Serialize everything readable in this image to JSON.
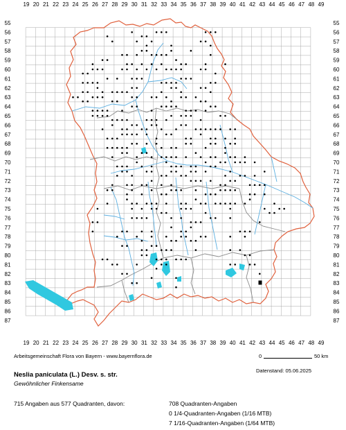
{
  "map": {
    "x_labels": [
      "19",
      "20",
      "21",
      "22",
      "23",
      "24",
      "25",
      "26",
      "27",
      "28",
      "29",
      "30",
      "31",
      "32",
      "33",
      "34",
      "35",
      "36",
      "37",
      "38",
      "39",
      "40",
      "41",
      "42",
      "43",
      "44",
      "45",
      "46",
      "47",
      "48",
      "49"
    ],
    "y_labels": [
      "55",
      "56",
      "57",
      "58",
      "59",
      "60",
      "61",
      "62",
      "63",
      "64",
      "65",
      "66",
      "67",
      "68",
      "69",
      "70",
      "71",
      "72",
      "73",
      "74",
      "75",
      "76",
      "77",
      "78",
      "79",
      "80",
      "81",
      "82",
      "83",
      "84",
      "85",
      "86",
      "87"
    ],
    "colors": {
      "grid": "#a8a8a8",
      "border_outer": "#e0603c",
      "border_inner": "#8a8a8a",
      "rivers": "#5aaee0",
      "lakes": "#30c8e0",
      "dots": "#000000"
    }
  },
  "footer": {
    "attribution": "Arbeitsgemeinschaft Flora von Bayern - www.bayernflora.de",
    "scale_start": "0",
    "scale_end": "50 km",
    "datenstand": "Datenstand: 05.06.2025",
    "species_name": "Neslia paniculata (L.) Desv. s. str.",
    "common_name": "Gewöhnlicher Finkensame",
    "summary": "715 Angaben aus 577 Quadranten, davon:",
    "stat1": "708 Quadranten-Angaben",
    "stat2": "0 1/4-Quadranten-Angaben (1/16 MTB)",
    "stat3": "7 1/16-Quadranten-Angaben (1/64 MTB)"
  }
}
